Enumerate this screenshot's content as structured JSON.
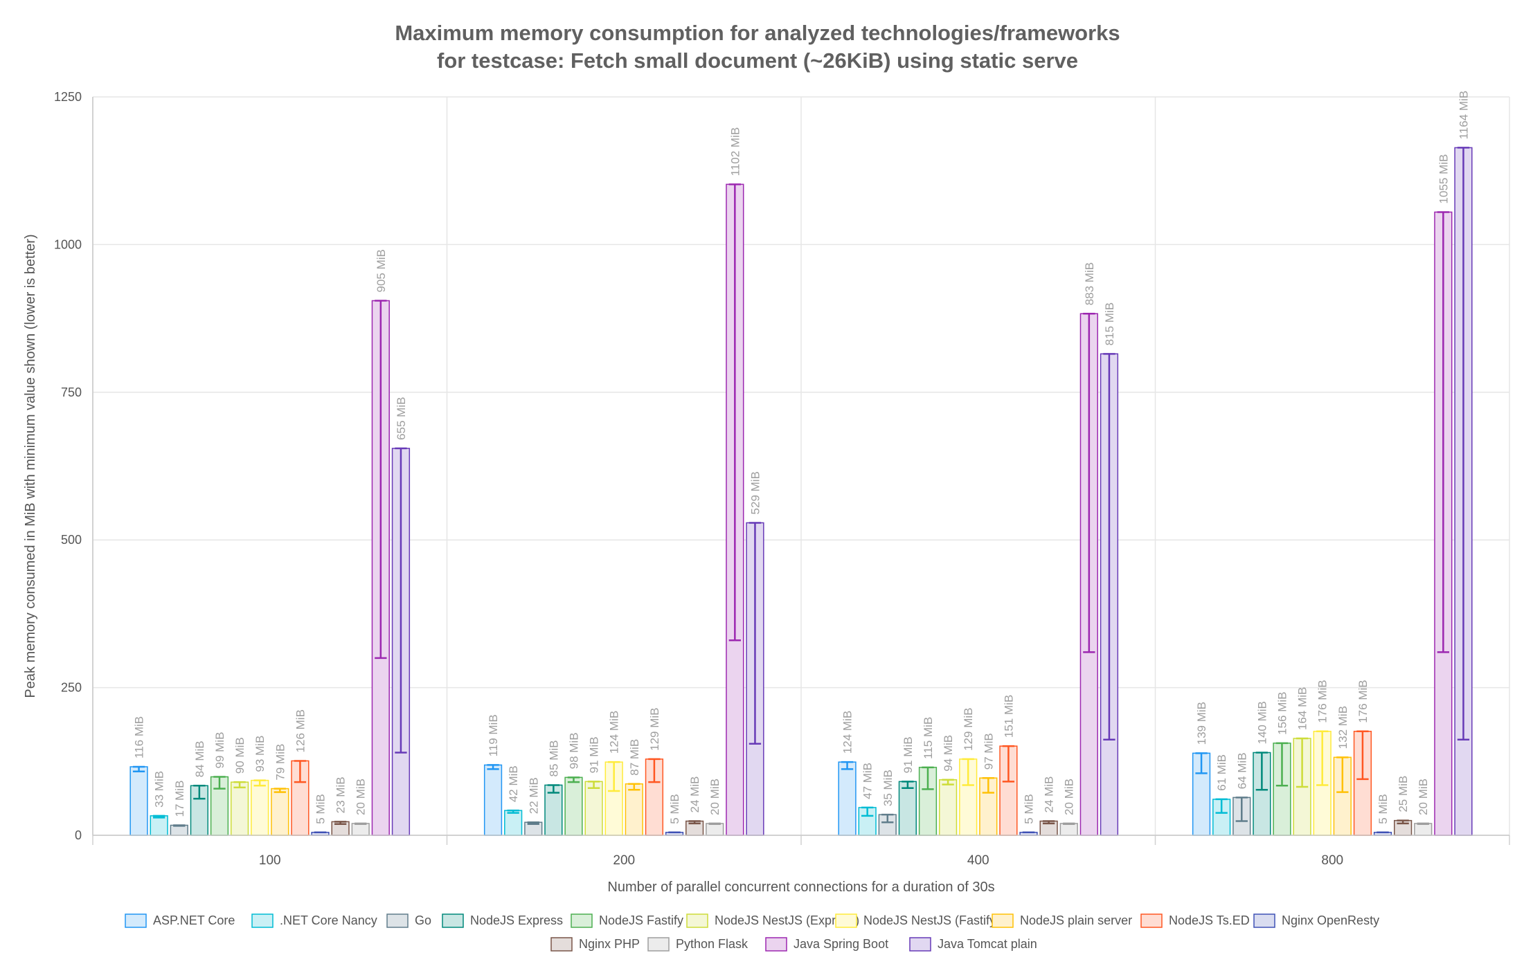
{
  "chart_data": {
    "type": "bar",
    "title": [
      "Maximum memory consumption for analyzed technologies/frameworks",
      "for testcase: Fetch small document (~26KiB) using static serve"
    ],
    "xlabel": "Number of parallel concurrent connections for a duration of 30s",
    "ylabel": "Peak memory consumed in MiB with minimum value shown (lower is better)",
    "ylim": [
      0,
      1250
    ],
    "yticks": [
      0,
      250,
      500,
      750,
      1000,
      1250
    ],
    "categories": [
      "100",
      "200",
      "400",
      "800"
    ],
    "value_suffix": " MiB",
    "grid": true,
    "legend_position": "bottom",
    "series": [
      {
        "name": "ASP.NET Core",
        "color": "#2196f3",
        "fill": "#d3eafc",
        "values": [
          116,
          119,
          124,
          139
        ],
        "min": [
          108,
          112,
          112,
          105
        ]
      },
      {
        "name": ".NET Core Nancy",
        "color": "#00bcd4",
        "fill": "#c9f0f5",
        "values": [
          33,
          42,
          47,
          61
        ],
        "min": [
          30,
          38,
          33,
          38
        ]
      },
      {
        "name": "Go",
        "color": "#607d8b",
        "fill": "#dde3e7",
        "values": [
          17,
          22,
          35,
          64
        ],
        "min": [
          16,
          19,
          22,
          24
        ]
      },
      {
        "name": "NodeJS Express",
        "color": "#00897b",
        "fill": "#c8e6e3",
        "values": [
          84,
          85,
          91,
          140
        ],
        "min": [
          62,
          72,
          80,
          77
        ]
      },
      {
        "name": "NodeJS Fastify",
        "color": "#4caf50",
        "fill": "#d9efd9",
        "values": [
          99,
          98,
          115,
          156
        ],
        "min": [
          79,
          90,
          78,
          84
        ]
      },
      {
        "name": "NodeJS NestJS (Express)",
        "color": "#cddc39",
        "fill": "#f4f7d6",
        "values": [
          90,
          91,
          94,
          164
        ],
        "min": [
          81,
          80,
          86,
          82
        ]
      },
      {
        "name": "NodeJS NestJS (Fastify)",
        "color": "#ffeb3b",
        "fill": "#fffbd7",
        "values": [
          93,
          124,
          129,
          176
        ],
        "min": [
          84,
          75,
          85,
          85
        ]
      },
      {
        "name": "NodeJS plain server",
        "color": "#ffc107",
        "fill": "#fff1cd",
        "values": [
          79,
          87,
          97,
          132
        ],
        "min": [
          73,
          77,
          72,
          73
        ]
      },
      {
        "name": "NodeJS Ts.ED",
        "color": "#ff5722",
        "fill": "#ffddd3",
        "values": [
          126,
          129,
          151,
          176
        ],
        "min": [
          90,
          90,
          91,
          95
        ]
      },
      {
        "name": "Nginx OpenResty",
        "color": "#3f51b5",
        "fill": "#d9dcf0",
        "values": [
          5,
          5,
          5,
          5
        ],
        "min": [
          5,
          5,
          5,
          5
        ]
      },
      {
        "name": "Nginx PHP",
        "color": "#795548",
        "fill": "#e4dddb",
        "values": [
          23,
          24,
          24,
          25
        ],
        "min": [
          19,
          20,
          20,
          20
        ]
      },
      {
        "name": "Python Flask",
        "color": "#9e9e9e",
        "fill": "#ececec",
        "values": [
          20,
          20,
          20,
          20
        ],
        "min": [
          19,
          19,
          19,
          19
        ]
      },
      {
        "name": "Java Spring Boot",
        "color": "#9c27b0",
        "fill": "#ebd4ef",
        "values": [
          905,
          1102,
          883,
          1055
        ],
        "min": [
          300,
          330,
          310,
          310
        ]
      },
      {
        "name": "Java Tomcat plain",
        "color": "#673ab7",
        "fill": "#e1d8f1",
        "values": [
          655,
          529,
          815,
          1164
        ],
        "min": [
          140,
          155,
          162,
          162
        ]
      }
    ]
  }
}
